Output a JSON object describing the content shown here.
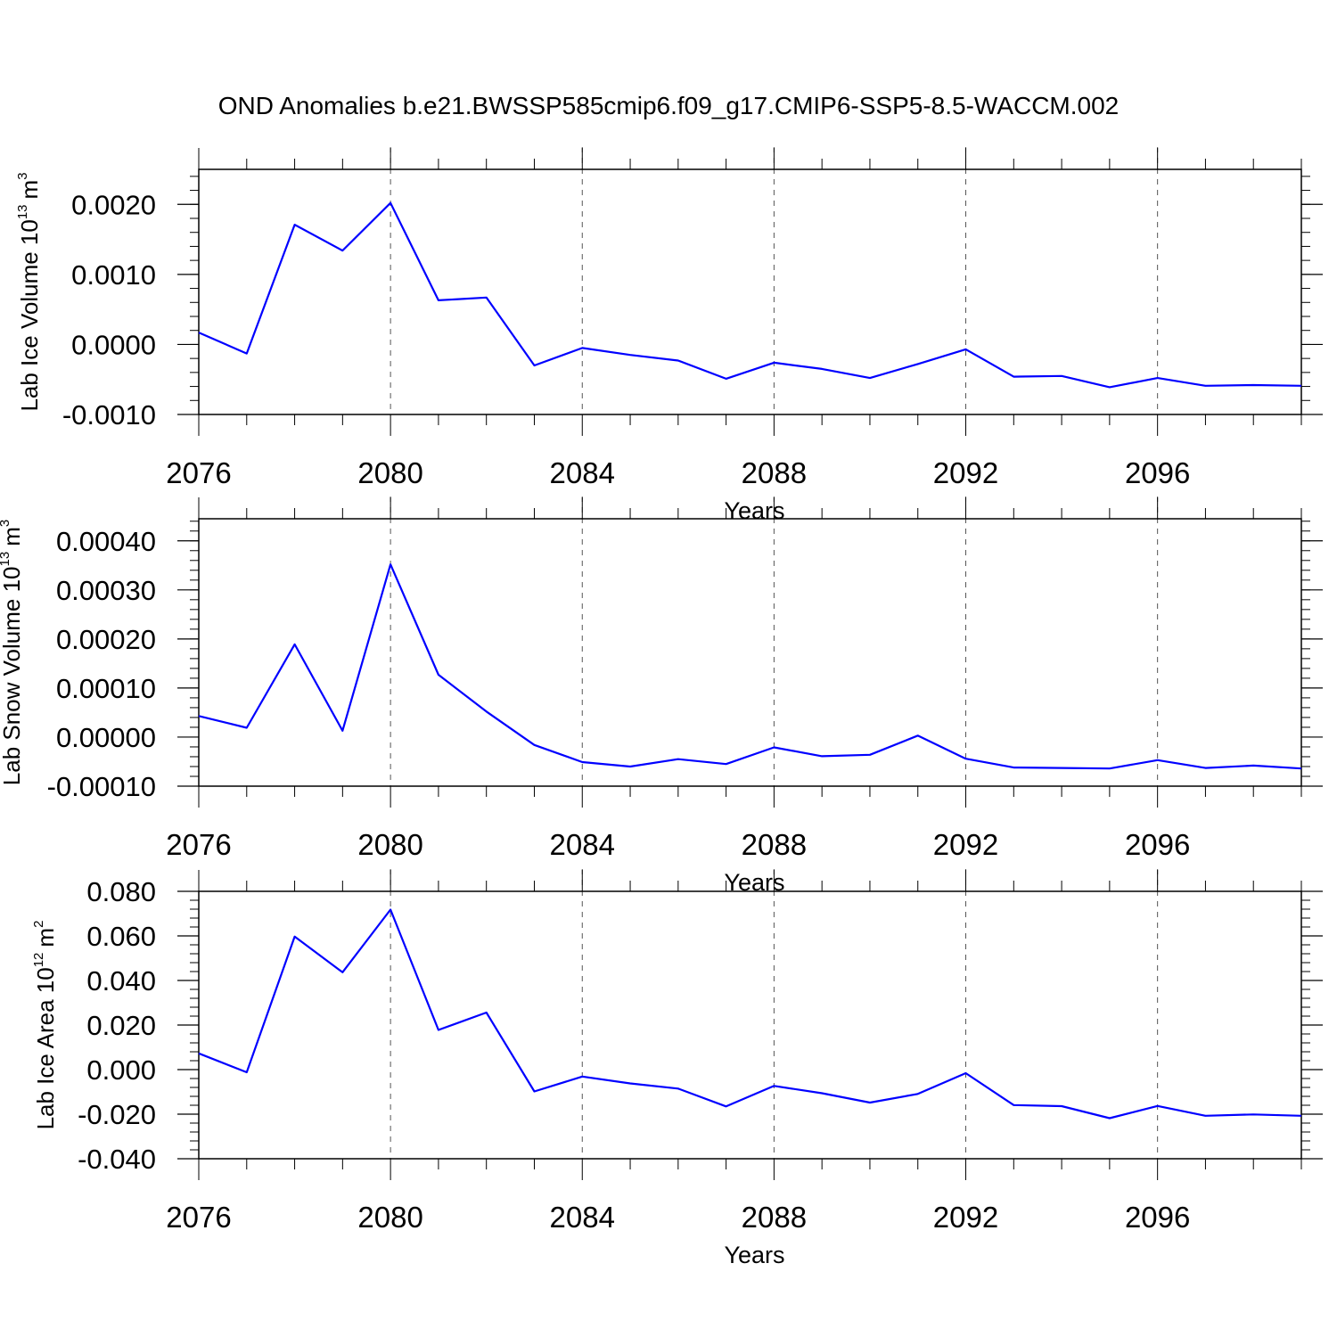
{
  "chart_data": {
    "title": "OND Anomalies b.e21.BWSSP585cmip6.f09_g17.CMIP6-SSP5-8.5-WACCM.002",
    "panels": [
      {
        "type": "line",
        "ylabel": {
          "text": "Lab Ice Volume 10",
          "exp": "13",
          "unit": "m",
          "unit_exp": "3"
        },
        "xlabel": "Years",
        "x": [
          2076,
          2077,
          2078,
          2079,
          2080,
          2081,
          2082,
          2083,
          2084,
          2085,
          2086,
          2087,
          2088,
          2089,
          2090,
          2091,
          2092,
          2093,
          2094,
          2095,
          2096,
          2097,
          2098,
          2099
        ],
        "values": [
          0.00017,
          -0.00013,
          0.00171,
          0.00134,
          0.00202,
          0.00063,
          0.00067,
          -0.0003,
          -5e-05,
          -0.00015,
          -0.00023,
          -0.00049,
          -0.00026,
          -0.00035,
          -0.00048,
          -0.00028,
          -7e-05,
          -0.00046,
          -0.00045,
          -0.00061,
          -0.00048,
          -0.00059,
          -0.00058,
          -0.00059
        ],
        "xlim": [
          2076,
          2099
        ],
        "ylim": [
          -0.001,
          0.0025
        ],
        "xticks": [
          2076,
          2080,
          2084,
          2088,
          2092,
          2096
        ],
        "xtick_labels": [
          "2076",
          "2080",
          "2084",
          "2088",
          "2092",
          "2096"
        ],
        "yticks": [
          -0.001,
          0.0,
          0.001,
          0.002
        ],
        "ytick_labels": [
          "-0.0010",
          "0.0000",
          "0.0010",
          "0.0020"
        ],
        "yminor_step": 0.0002,
        "color": "#0000ff"
      },
      {
        "type": "line",
        "ylabel": {
          "text": "Lab Snow Volume 10",
          "exp": "13",
          "unit": "m",
          "unit_exp": "3"
        },
        "xlabel": "Years",
        "x": [
          2076,
          2077,
          2078,
          2079,
          2080,
          2081,
          2082,
          2083,
          2084,
          2085,
          2086,
          2087,
          2088,
          2089,
          2090,
          2091,
          2092,
          2093,
          2094,
          2095,
          2096,
          2097,
          2098,
          2099
        ],
        "values": [
          4.3e-05,
          1.9e-05,
          0.000189,
          1.3e-05,
          0.000352,
          0.000127,
          5.2e-05,
          -1.6e-05,
          -5.1e-05,
          -6e-05,
          -4.5e-05,
          -5.5e-05,
          -2.1e-05,
          -3.9e-05,
          -3.6e-05,
          3e-06,
          -4.4e-05,
          -6.2e-05,
          -6.3e-05,
          -6.4e-05,
          -4.7e-05,
          -6.3e-05,
          -5.8e-05,
          -6.4e-05
        ],
        "xlim": [
          2076,
          2099
        ],
        "ylim": [
          -0.0001,
          0.0004
        ],
        "xticks": [
          2076,
          2080,
          2084,
          2088,
          2092,
          2096
        ],
        "xtick_labels": [
          "2076",
          "2080",
          "2084",
          "2088",
          "2092",
          "2096"
        ],
        "yticks": [
          -0.0001,
          0.0,
          0.0001,
          0.0002,
          0.0003,
          0.0004
        ],
        "ytick_labels": [
          "-0.00010",
          "0.00000",
          "0.00010",
          "0.00020",
          "0.00030",
          "0.00040"
        ],
        "yminor_step": 2e-05,
        "color": "#0000ff"
      },
      {
        "type": "line",
        "ylabel": {
          "text": "Lab Ice Area 10",
          "exp": "12",
          "unit": "m",
          "unit_exp": "2"
        },
        "xlabel": "Years",
        "x": [
          2076,
          2077,
          2078,
          2079,
          2080,
          2081,
          2082,
          2083,
          2084,
          2085,
          2086,
          2087,
          2088,
          2089,
          2090,
          2091,
          2092,
          2093,
          2094,
          2095,
          2096,
          2097,
          2098,
          2099
        ],
        "values": [
          0.0073,
          -0.0012,
          0.0597,
          0.0437,
          0.0718,
          0.0178,
          0.0256,
          -0.0098,
          -0.0031,
          -0.0062,
          -0.0085,
          -0.0165,
          -0.0073,
          -0.0106,
          -0.0148,
          -0.0109,
          -0.0016,
          -0.0159,
          -0.0164,
          -0.0218,
          -0.0163,
          -0.0207,
          -0.0201,
          -0.0207
        ],
        "xlim": [
          2076,
          2099
        ],
        "ylim": [
          -0.04,
          0.08
        ],
        "xticks": [
          2076,
          2080,
          2084,
          2088,
          2092,
          2096
        ],
        "xtick_labels": [
          "2076",
          "2080",
          "2084",
          "2088",
          "2092",
          "2096"
        ],
        "yticks": [
          -0.04,
          -0.02,
          0.0,
          0.02,
          0.04,
          0.06,
          0.08
        ],
        "ytick_labels": [
          "-0.040",
          "-0.020",
          "0.000",
          "0.020",
          "0.040",
          "0.060",
          "0.080"
        ],
        "yminor_step": 0.004,
        "color": "#0000ff"
      }
    ]
  }
}
